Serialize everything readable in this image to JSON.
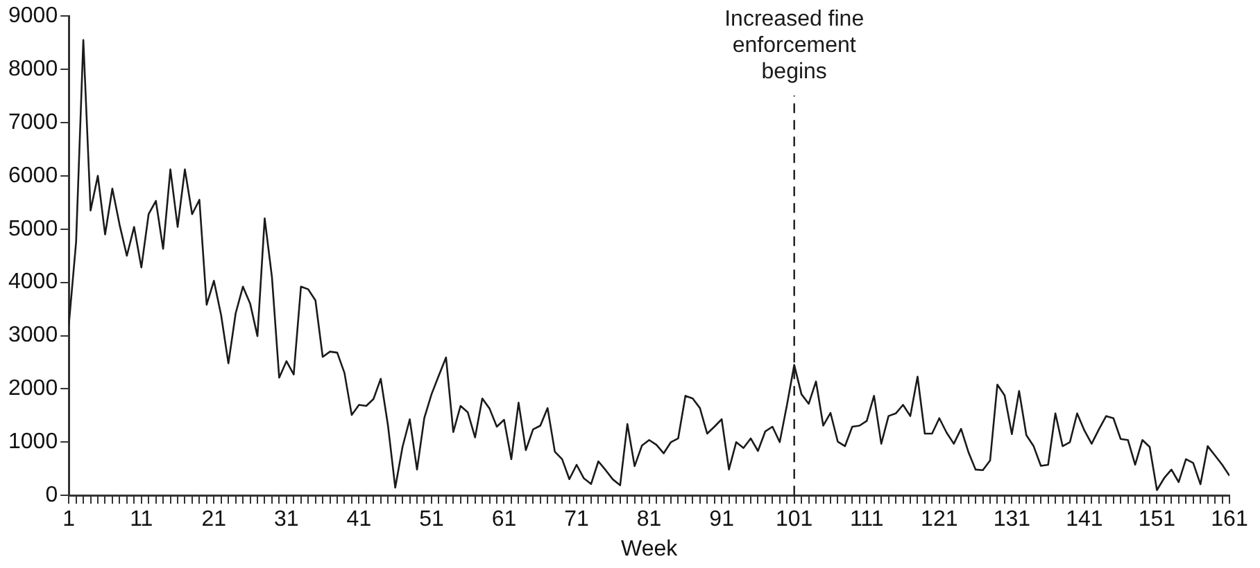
{
  "chart_data": {
    "type": "line",
    "xlabel": "Week",
    "color": "#1a1a1a",
    "legend": false,
    "marker": "none",
    "line_style": "solid",
    "x": [
      1,
      2,
      3,
      4,
      5,
      6,
      7,
      8,
      9,
      10,
      11,
      12,
      13,
      14,
      15,
      16,
      17,
      18,
      19,
      20,
      21,
      22,
      23,
      24,
      25,
      26,
      27,
      28,
      29,
      30,
      31,
      32,
      33,
      34,
      35,
      36,
      37,
      38,
      39,
      40,
      41,
      42,
      43,
      44,
      45,
      46,
      47,
      48,
      49,
      50,
      51,
      52,
      53,
      54,
      55,
      56,
      57,
      58,
      59,
      60,
      61,
      62,
      63,
      64,
      65,
      66,
      67,
      68,
      69,
      70,
      71,
      72,
      73,
      74,
      75,
      76,
      77,
      78,
      79,
      80,
      81,
      82,
      83,
      84,
      85,
      86,
      87,
      88,
      89,
      90,
      91,
      92,
      93,
      94,
      95,
      96,
      97,
      98,
      99,
      100,
      101,
      102,
      103,
      104,
      105,
      106,
      107,
      108,
      109,
      110,
      111,
      112,
      113,
      114,
      115,
      116,
      117,
      118,
      119,
      120,
      121,
      122,
      123,
      124,
      125,
      126,
      127,
      128,
      129,
      130,
      131,
      132,
      133,
      134,
      135,
      136,
      137,
      138,
      139,
      140,
      141,
      142,
      143,
      144,
      145,
      146,
      147,
      148,
      149,
      150,
      151,
      152,
      153,
      154,
      155,
      156,
      157,
      158,
      159,
      160,
      161
    ],
    "values": [
      3200,
      4750,
      8550,
      5350,
      6000,
      4900,
      5760,
      5080,
      4500,
      5040,
      4280,
      5280,
      5530,
      4630,
      6120,
      5040,
      6120,
      5280,
      5550,
      3580,
      4030,
      3380,
      2480,
      3420,
      3920,
      3600,
      2990,
      5200,
      4100,
      2210,
      2520,
      2270,
      3920,
      3870,
      3660,
      2600,
      2700,
      2680,
      2300,
      1510,
      1700,
      1680,
      1810,
      2190,
      1310,
      145,
      910,
      1430,
      485,
      1450,
      1900,
      2250,
      2590,
      1190,
      1680,
      1560,
      1090,
      1820,
      1630,
      1290,
      1420,
      680,
      1740,
      850,
      1240,
      1310,
      1640,
      820,
      680,
      305,
      575,
      320,
      215,
      640,
      475,
      300,
      190,
      1340,
      550,
      935,
      1040,
      950,
      790,
      1000,
      1070,
      1870,
      1820,
      1640,
      1160,
      1290,
      1430,
      485,
      1000,
      890,
      1070,
      835,
      1200,
      1290,
      1000,
      1700,
      2450,
      1900,
      1720,
      2140,
      1310,
      1550,
      1010,
      925,
      1290,
      1310,
      1400,
      1870,
      970,
      1490,
      1540,
      1700,
      1490,
      2230,
      1160,
      1160,
      1450,
      1180,
      970,
      1250,
      820,
      485,
      475,
      655,
      2080,
      1880,
      1150,
      1960,
      1130,
      925,
      555,
      575,
      1540,
      925,
      1000,
      1540,
      1220,
      970,
      1240,
      1490,
      1450,
      1060,
      1040,
      575,
      1040,
      910,
      100,
      325,
      485,
      250,
      680,
      610,
      210,
      925,
      750,
      575,
      370
    ],
    "xlim": [
      1,
      161
    ],
    "xticks": [
      1,
      {
        "value": 2,
        "label": null
      },
      {
        "value": 3,
        "label": null
      },
      {
        "value": 4,
        "label": null
      },
      {
        "value": 5,
        "label": null
      },
      {
        "value": 6,
        "label": null
      },
      {
        "value": 7,
        "label": null
      },
      {
        "value": 8,
        "label": null
      },
      {
        "value": 9,
        "label": null
      },
      {
        "value": 10,
        "label": null
      },
      11,
      {
        "value": 12,
        "label": null
      },
      {
        "value": 13,
        "label": null
      },
      {
        "value": 14,
        "label": null
      },
      {
        "value": 15,
        "label": null
      },
      {
        "value": 16,
        "label": null
      },
      {
        "value": 17,
        "label": null
      },
      {
        "value": 18,
        "label": null
      },
      {
        "value": 19,
        "label": null
      },
      {
        "value": 20,
        "label": null
      },
      21,
      {
        "value": 22,
        "label": null
      },
      {
        "value": 23,
        "label": null
      },
      {
        "value": 24,
        "label": null
      },
      {
        "value": 25,
        "label": null
      },
      {
        "value": 26,
        "label": null
      },
      {
        "value": 27,
        "label": null
      },
      {
        "value": 28,
        "label": null
      },
      {
        "value": 29,
        "label": null
      },
      {
        "value": 30,
        "label": null
      },
      31,
      {
        "value": 32,
        "label": null
      },
      {
        "value": 33,
        "label": null
      },
      {
        "value": 34,
        "label": null
      },
      {
        "value": 35,
        "label": null
      },
      {
        "value": 36,
        "label": null
      },
      {
        "value": 37,
        "label": null
      },
      {
        "value": 38,
        "label": null
      },
      {
        "value": 39,
        "label": null
      },
      {
        "value": 40,
        "label": null
      },
      41,
      {
        "value": 42,
        "label": null
      },
      {
        "value": 43,
        "label": null
      },
      {
        "value": 44,
        "label": null
      },
      {
        "value": 45,
        "label": null
      },
      {
        "value": 46,
        "label": null
      },
      {
        "value": 47,
        "label": null
      },
      {
        "value": 48,
        "label": null
      },
      {
        "value": 49,
        "label": null
      },
      {
        "value": 50,
        "label": null
      },
      51,
      {
        "value": 52,
        "label": null
      },
      {
        "value": 53,
        "label": null
      },
      {
        "value": 54,
        "label": null
      },
      {
        "value": 55,
        "label": null
      },
      {
        "value": 56,
        "label": null
      },
      {
        "value": 57,
        "label": null
      },
      {
        "value": 58,
        "label": null
      },
      {
        "value": 59,
        "label": null
      },
      {
        "value": 60,
        "label": null
      },
      61,
      {
        "value": 62,
        "label": null
      },
      {
        "value": 63,
        "label": null
      },
      {
        "value": 64,
        "label": null
      },
      {
        "value": 65,
        "label": null
      },
      {
        "value": 66,
        "label": null
      },
      {
        "value": 67,
        "label": null
      },
      {
        "value": 68,
        "label": null
      },
      {
        "value": 69,
        "label": null
      },
      {
        "value": 70,
        "label": null
      },
      71,
      {
        "value": 72,
        "label": null
      },
      {
        "value": 73,
        "label": null
      },
      {
        "value": 74,
        "label": null
      },
      {
        "value": 75,
        "label": null
      },
      {
        "value": 76,
        "label": null
      },
      {
        "value": 77,
        "label": null
      },
      {
        "value": 78,
        "label": null
      },
      {
        "value": 79,
        "label": null
      },
      {
        "value": 80,
        "label": null
      },
      81,
      {
        "value": 82,
        "label": null
      },
      {
        "value": 83,
        "label": null
      },
      {
        "value": 84,
        "label": null
      },
      {
        "value": 85,
        "label": null
      },
      {
        "value": 86,
        "label": null
      },
      {
        "value": 87,
        "label": null
      },
      {
        "value": 88,
        "label": null
      },
      {
        "value": 89,
        "label": null
      },
      {
        "value": 90,
        "label": null
      },
      91,
      {
        "value": 92,
        "label": null
      },
      {
        "value": 93,
        "label": null
      },
      {
        "value": 94,
        "label": null
      },
      {
        "value": 95,
        "label": null
      },
      {
        "value": 96,
        "label": null
      },
      {
        "value": 97,
        "label": null
      },
      {
        "value": 98,
        "label": null
      },
      {
        "value": 99,
        "label": null
      },
      {
        "value": 100,
        "label": null
      },
      101,
      {
        "value": 102,
        "label": null
      },
      {
        "value": 103,
        "label": null
      },
      {
        "value": 104,
        "label": null
      },
      {
        "value": 105,
        "label": null
      },
      {
        "value": 106,
        "label": null
      },
      {
        "value": 107,
        "label": null
      },
      {
        "value": 108,
        "label": null
      },
      {
        "value": 109,
        "label": null
      },
      {
        "value": 110,
        "label": null
      },
      111,
      {
        "value": 112,
        "label": null
      },
      {
        "value": 113,
        "label": null
      },
      {
        "value": 114,
        "label": null
      },
      {
        "value": 115,
        "label": null
      },
      {
        "value": 116,
        "label": null
      },
      {
        "value": 117,
        "label": null
      },
      {
        "value": 118,
        "label": null
      },
      {
        "value": 119,
        "label": null
      },
      {
        "value": 120,
        "label": null
      },
      121,
      {
        "value": 122,
        "label": null
      },
      {
        "value": 123,
        "label": null
      },
      {
        "value": 124,
        "label": null
      },
      {
        "value": 125,
        "label": null
      },
      {
        "value": 126,
        "label": null
      },
      {
        "value": 127,
        "label": null
      },
      {
        "value": 128,
        "label": null
      },
      {
        "value": 129,
        "label": null
      },
      {
        "value": 130,
        "label": null
      },
      131,
      {
        "value": 132,
        "label": null
      },
      {
        "value": 133,
        "label": null
      },
      {
        "value": 134,
        "label": null
      },
      {
        "value": 135,
        "label": null
      },
      {
        "value": 136,
        "label": null
      },
      {
        "value": 137,
        "label": null
      },
      {
        "value": 138,
        "label": null
      },
      {
        "value": 139,
        "label": null
      },
      {
        "value": 140,
        "label": null
      },
      141,
      {
        "value": 142,
        "label": null
      },
      {
        "value": 143,
        "label": null
      },
      {
        "value": 144,
        "label": null
      },
      {
        "value": 145,
        "label": null
      },
      {
        "value": 146,
        "label": null
      },
      {
        "value": 147,
        "label": null
      },
      {
        "value": 148,
        "label": null
      },
      {
        "value": 149,
        "label": null
      },
      {
        "value": 150,
        "label": null
      },
      151,
      {
        "value": 152,
        "label": null
      },
      {
        "value": 153,
        "label": null
      },
      {
        "value": 154,
        "label": null
      },
      {
        "value": 155,
        "label": null
      },
      {
        "value": 156,
        "label": null
      },
      {
        "value": 157,
        "label": null
      },
      {
        "value": 158,
        "label": null
      },
      {
        "value": 159,
        "label": null
      },
      {
        "value": 160,
        "label": null
      },
      161
    ],
    "ylim": [
      0,
      9000
    ],
    "yticks": [
      0,
      1000,
      2000,
      3000,
      4000,
      5000,
      6000,
      7000,
      8000,
      9000
    ],
    "ref_lines": [
      {
        "axis": "x",
        "value": 101,
        "label": "Increased fine enforcement begins",
        "line_style": "dashed",
        "color": "#1a1a1a"
      }
    ]
  }
}
